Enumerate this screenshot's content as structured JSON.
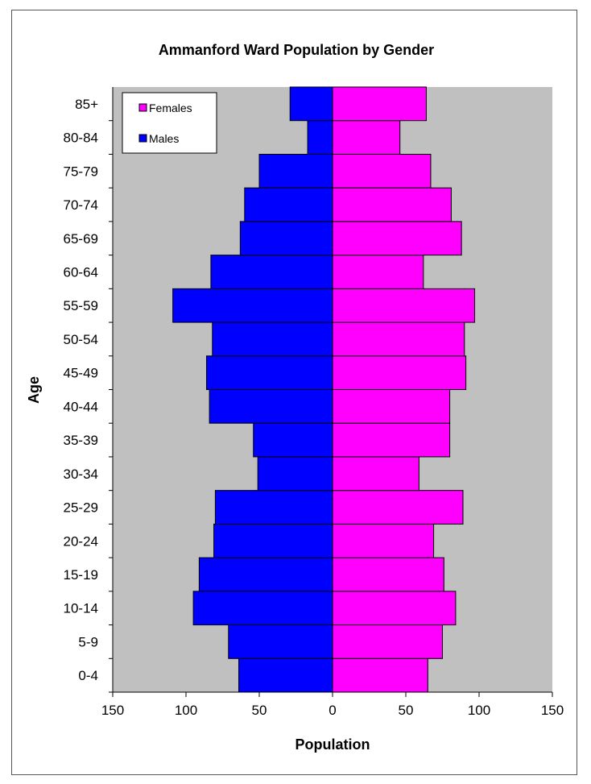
{
  "chart_data": {
    "type": "bar",
    "orientation": "horizontal",
    "title": "Ammanford Ward Population by Gender",
    "xlabel": "Population",
    "ylabel": "Age",
    "categories": [
      "0-4",
      "5-9",
      "10-14",
      "15-19",
      "20-24",
      "25-29",
      "30-34",
      "35-39",
      "40-44",
      "45-49",
      "50-54",
      "55-59",
      "60-64",
      "65-69",
      "70-74",
      "75-79",
      "80-84",
      "85+"
    ],
    "series": [
      {
        "name": "Males",
        "color": "#0000ff",
        "values": [
          64,
          71,
          95,
          91,
          81,
          80,
          51,
          54,
          84,
          86,
          82,
          109,
          83,
          63,
          60,
          50,
          17,
          29
        ]
      },
      {
        "name": "Females",
        "color": "#ff00ff",
        "values": [
          65,
          75,
          84,
          76,
          69,
          89,
          59,
          80,
          80,
          91,
          90,
          97,
          62,
          88,
          81,
          67,
          46,
          64
        ]
      }
    ],
    "xlim": [
      -150,
      150
    ],
    "x_ticks": [
      -150,
      -100,
      -50,
      0,
      50,
      100,
      150
    ],
    "x_tick_labels": [
      "150",
      "100",
      "50",
      "0",
      "50",
      "100",
      "150"
    ],
    "plot_background": "#c0c0c0",
    "grid": false,
    "legend": {
      "position": "top-left",
      "entries": [
        "Females",
        "Males"
      ]
    }
  }
}
